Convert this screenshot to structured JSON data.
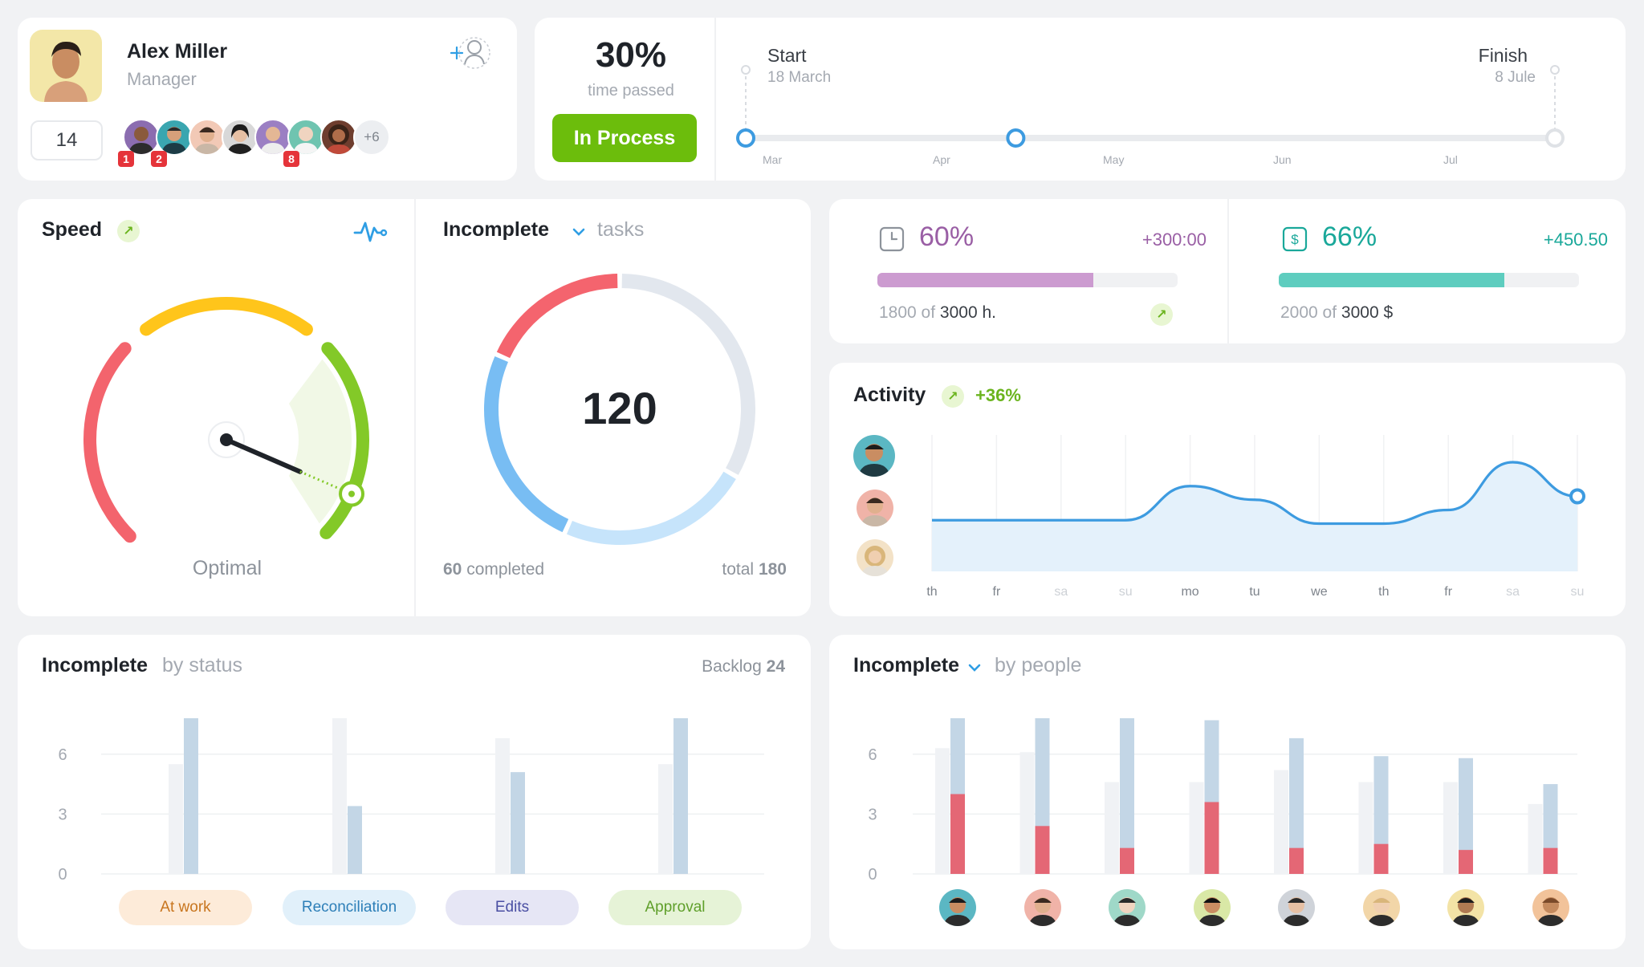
{
  "profile": {
    "name": "Alex Miller",
    "role": "Manager",
    "count": "14",
    "more_team": "+6",
    "badges": [
      "1",
      "2",
      "8"
    ]
  },
  "timeline": {
    "percent": "30%",
    "percent_label": "time passed",
    "status_button": "In Process",
    "start_label": "Start",
    "start_date": "18 March",
    "finish_label": "Finish",
    "finish_date": "8 Jule",
    "months": [
      "Mar",
      "Apr",
      "May",
      "Jun",
      "Jul"
    ],
    "progress": 0.3
  },
  "speed": {
    "title": "Speed",
    "status": "Optimal",
    "level": 0.92
  },
  "tasks": {
    "title": "Incomplete",
    "subtitle": "tasks",
    "total_value": "120",
    "completed_num": "60",
    "completed_label": "completed",
    "total_label": "total",
    "total_num": "180"
  },
  "hours": {
    "percent": "60%",
    "delta": "+300:00",
    "done": "1800 of",
    "goal": "3000 h.",
    "fill": 0.72,
    "color": "#cc9bd0"
  },
  "money": {
    "percent": "66%",
    "delta": "+450.50",
    "done": "2000 of",
    "goal": "3000 $",
    "fill": 0.75,
    "color": "#5ecdbf"
  },
  "activity": {
    "title": "Activity",
    "change": "+36%",
    "days": [
      "th",
      "fr",
      "sa",
      "su",
      "mo",
      "tu",
      "we",
      "th",
      "fr",
      "sa",
      "su"
    ],
    "values": [
      3.0,
      3.0,
      3.0,
      3.0,
      5.0,
      4.2,
      2.8,
      2.8,
      3.6,
      6.4,
      4.4
    ]
  },
  "status_chart": {
    "title": "Incomplete",
    "subtitle": "by status",
    "backlog_label": "Backlog",
    "backlog_value": "24",
    "y_ticks": [
      "6",
      "3",
      "0"
    ],
    "categories": [
      {
        "label": "At work",
        "bg": "#fdebd9",
        "fg": "#c8751e"
      },
      {
        "label": "Reconciliation",
        "bg": "#e1f0fa",
        "fg": "#2d7fb8"
      },
      {
        "label": "Edits",
        "bg": "#e6e6f5",
        "fg": "#4a4fa3"
      },
      {
        "label": "Approval",
        "bg": "#e6f3d7",
        "fg": "#5f9f2a"
      }
    ]
  },
  "people_chart": {
    "title": "Incomplete",
    "subtitle": "by people",
    "y_ticks": [
      "6",
      "3",
      "0"
    ]
  },
  "chart_data": [
    {
      "type": "bar",
      "title": "Incomplete by status",
      "categories": [
        "At work",
        "Reconciliation",
        "Edits",
        "Approval"
      ],
      "series": [
        {
          "values": [
            5.5,
            7.8,
            6.8,
            5.5
          ]
        },
        {
          "values": [
            7.8,
            3.4,
            5.1,
            7.8
          ]
        }
      ],
      "ylim": [
        0,
        7.8
      ]
    },
    {
      "type": "bar",
      "title": "Incomplete by people",
      "categories": [
        "p1",
        "p2",
        "p3",
        "p4",
        "p5",
        "p6",
        "p7",
        "p8"
      ],
      "series": [
        {
          "values": [
            6.3,
            6.1,
            4.6,
            4.6,
            5.2,
            4.6,
            4.6,
            3.5
          ]
        },
        {
          "values": [
            7.8,
            7.8,
            7.8,
            7.7,
            6.8,
            5.9,
            5.8,
            4.5
          ]
        },
        {
          "values": [
            4.0,
            2.4,
            1.3,
            3.6,
            1.3,
            1.5,
            1.2,
            1.3
          ]
        }
      ],
      "ylim": [
        0,
        7.8
      ]
    },
    {
      "type": "area",
      "title": "Activity",
      "x": [
        "th",
        "fr",
        "sa",
        "su",
        "mo",
        "tu",
        "we",
        "th",
        "fr",
        "sa",
        "su"
      ],
      "series": [
        {
          "values": [
            3.0,
            3.0,
            3.0,
            3.0,
            5.0,
            4.2,
            2.8,
            2.8,
            3.6,
            6.4,
            4.4
          ]
        }
      ]
    }
  ]
}
